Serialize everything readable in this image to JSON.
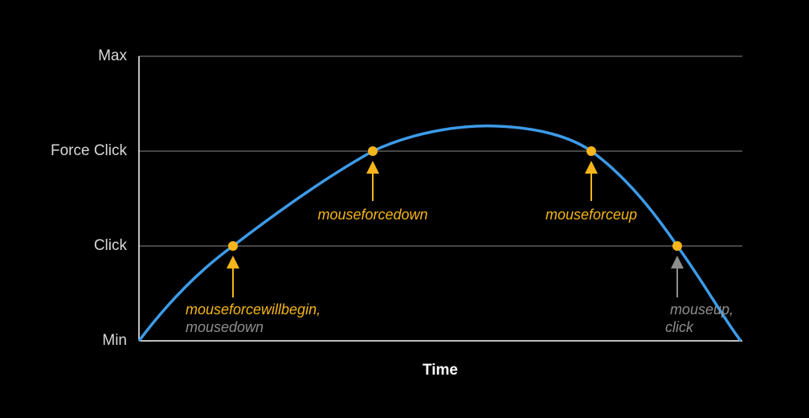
{
  "y_axis": {
    "levels": [
      "Max",
      "Force Click",
      "Click",
      "Min"
    ]
  },
  "x_axis": {
    "label": "Time"
  },
  "events": [
    {
      "lines": [
        "mouseforcewillbegin,",
        "mousedown"
      ]
    },
    {
      "lines": [
        "mouseforcedown"
      ]
    },
    {
      "lines": [
        "mouseforceup"
      ]
    },
    {
      "lines": [
        "mouseup,",
        "click"
      ]
    }
  ]
}
